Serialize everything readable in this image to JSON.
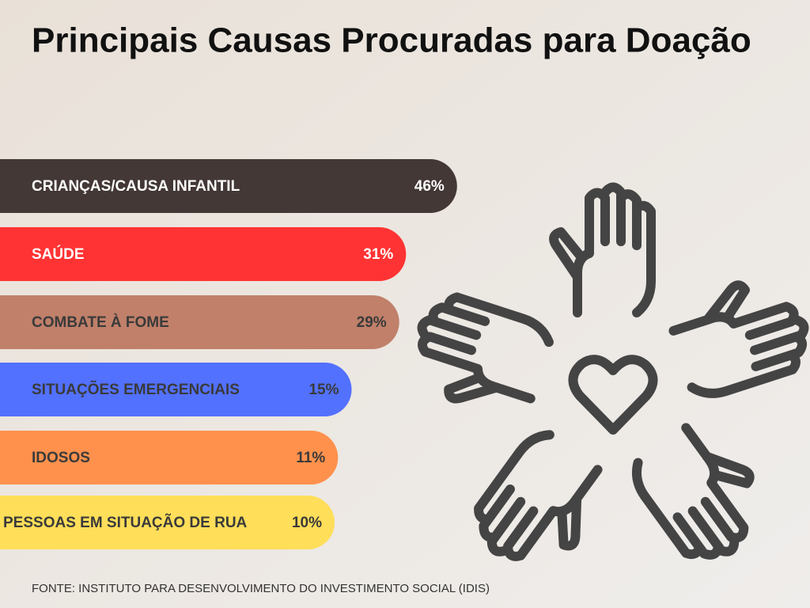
{
  "chart_data": {
    "type": "bar",
    "title": "Principais Causas Procuradas para Doação",
    "categories": [
      "CRIANÇAS/CAUSA INFANTIL",
      "SAÚDE",
      "COMBATE À FOME",
      "SITUAÇÕES EMERGENCIAIS",
      "IDOSOS",
      "PESSOAS EM SITUAÇÃO DE RUA"
    ],
    "values": [
      46,
      31,
      29,
      15,
      11,
      10
    ],
    "value_labels": [
      "46%",
      "31%",
      "29%",
      "15%",
      "11%",
      "10%"
    ],
    "colors": [
      "#433836",
      "#ff3333",
      "#c0806a",
      "#5271ff",
      "#ff914d",
      "#ffde59"
    ],
    "source": "FONTE: INSTITUTO PARA DESENVOLVIMENTO DO INVESTIMENTO SOCIAL (IDIS)"
  }
}
